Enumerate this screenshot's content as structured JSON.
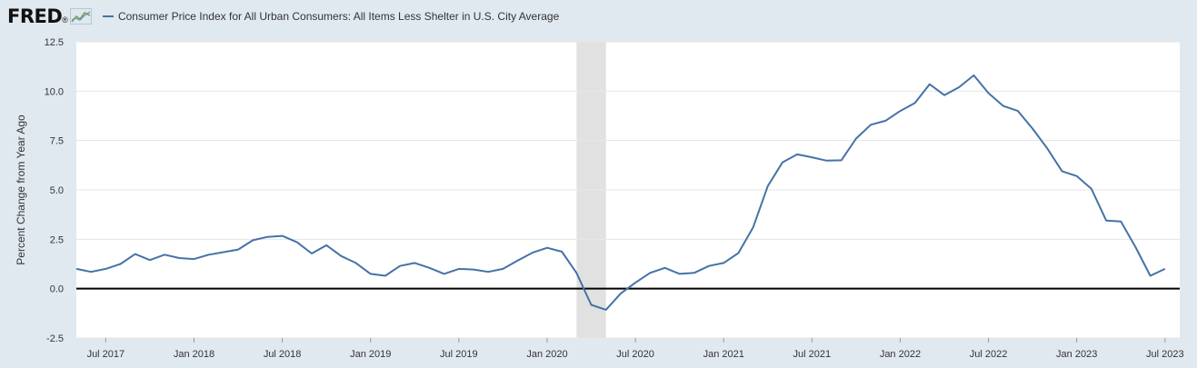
{
  "header": {
    "logo": "FRED",
    "logo_mark": "®",
    "legend_label": "Consumer Price Index for All Urban Consumers: All Items Less Shelter in U.S. City Average"
  },
  "colors": {
    "series": "#4572a7",
    "recession": "#e1e1e1",
    "background": "#e1e9f0",
    "plot": "#ffffff",
    "zero_line": "#000000"
  },
  "chart_data": {
    "type": "line",
    "title": "Consumer Price Index for All Urban Consumers: All Items Less Shelter in U.S. City Average",
    "xlabel": "",
    "ylabel": "Percent Change from Year Ago",
    "ylim": [
      -2.5,
      12.5
    ],
    "yticks": [
      -2.5,
      0.0,
      2.5,
      5.0,
      7.5,
      10.0,
      12.5
    ],
    "ytick_labels": [
      "-2.5",
      "0.0",
      "2.5",
      "5.0",
      "7.5",
      "10.0",
      "12.5"
    ],
    "x_start": "2017-05",
    "x_end": "2023-08",
    "xticks": [
      {
        "date": "2017-07",
        "label": "Jul 2017"
      },
      {
        "date": "2018-01",
        "label": "Jan 2018"
      },
      {
        "date": "2018-07",
        "label": "Jul 2018"
      },
      {
        "date": "2019-01",
        "label": "Jan 2019"
      },
      {
        "date": "2019-07",
        "label": "Jul 2019"
      },
      {
        "date": "2020-01",
        "label": "Jan 2020"
      },
      {
        "date": "2020-07",
        "label": "Jul 2020"
      },
      {
        "date": "2021-01",
        "label": "Jan 2021"
      },
      {
        "date": "2021-07",
        "label": "Jul 2021"
      },
      {
        "date": "2022-01",
        "label": "Jan 2022"
      },
      {
        "date": "2022-07",
        "label": "Jul 2022"
      },
      {
        "date": "2023-01",
        "label": "Jan 2023"
      },
      {
        "date": "2023-07",
        "label": "Jul 2023"
      }
    ],
    "recessions": [
      {
        "start": "2020-03",
        "end": "2020-05"
      }
    ],
    "series": [
      {
        "name": "Consumer Price Index for All Urban Consumers: All Items Less Shelter in U.S. City Average",
        "start": "2017-05",
        "values": [
          1.0,
          0.85,
          1.0,
          1.25,
          1.75,
          1.45,
          1.72,
          1.55,
          1.5,
          1.72,
          1.85,
          1.98,
          2.45,
          2.62,
          2.67,
          2.35,
          1.78,
          2.2,
          1.65,
          1.3,
          0.75,
          0.65,
          1.15,
          1.3,
          1.05,
          0.75,
          1.0,
          0.97,
          0.85,
          1.0,
          1.42,
          1.82,
          2.07,
          1.87,
          0.8,
          -0.82,
          -1.07,
          -0.25,
          0.3,
          0.8,
          1.05,
          0.75,
          0.8,
          1.15,
          1.3,
          1.8,
          3.1,
          5.2,
          6.4,
          6.8,
          6.65,
          6.48,
          6.5,
          7.6,
          8.3,
          8.5,
          9.0,
          9.4,
          10.35,
          9.8,
          10.2,
          10.8,
          9.9,
          9.25,
          9.0,
          8.1,
          7.1,
          5.95,
          5.7,
          5.05,
          3.45,
          3.4,
          2.1,
          0.65,
          1.0
        ]
      }
    ]
  }
}
